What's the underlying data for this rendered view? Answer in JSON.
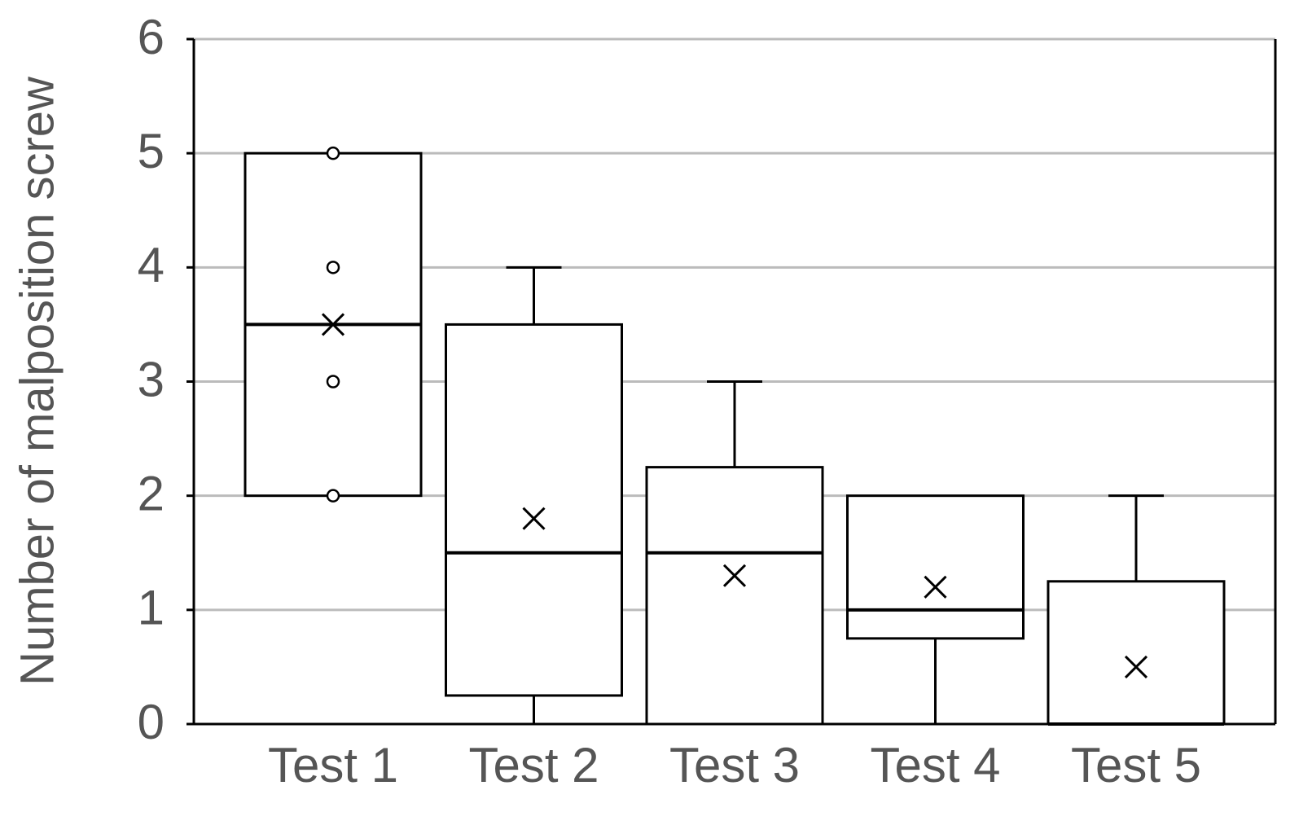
{
  "chart_data": {
    "type": "box",
    "y_label": "Number of malposition screw",
    "categories": [
      "Test 1",
      "Test 2",
      "Test 3",
      "Test 4",
      "Test 5"
    ],
    "boxes": [
      {
        "min": 2,
        "q1": 2,
        "median": 3.5,
        "q3": 5,
        "max": 5,
        "mean": 3.5,
        "points": [
          5,
          4,
          3,
          2
        ]
      },
      {
        "min": 0,
        "q1": 0.25,
        "median": 1.5,
        "q3": 3.5,
        "max": 4,
        "mean": 1.8,
        "points": []
      },
      {
        "min": 0,
        "q1": 0,
        "median": 1.5,
        "q3": 2.25,
        "max": 3,
        "mean": 1.3,
        "points": []
      },
      {
        "min": 0,
        "q1": 0.75,
        "median": 1,
        "q3": 2,
        "max": 2,
        "mean": 1.2,
        "points": []
      },
      {
        "min": 0,
        "q1": 0,
        "median": 0,
        "q3": 1.25,
        "max": 2,
        "mean": 0.5,
        "points": []
      }
    ],
    "color": "#000000",
    "ylim": [
      0,
      6
    ],
    "yticks": [
      0,
      1,
      2,
      3,
      4,
      5,
      6
    ],
    "grid": true
  }
}
